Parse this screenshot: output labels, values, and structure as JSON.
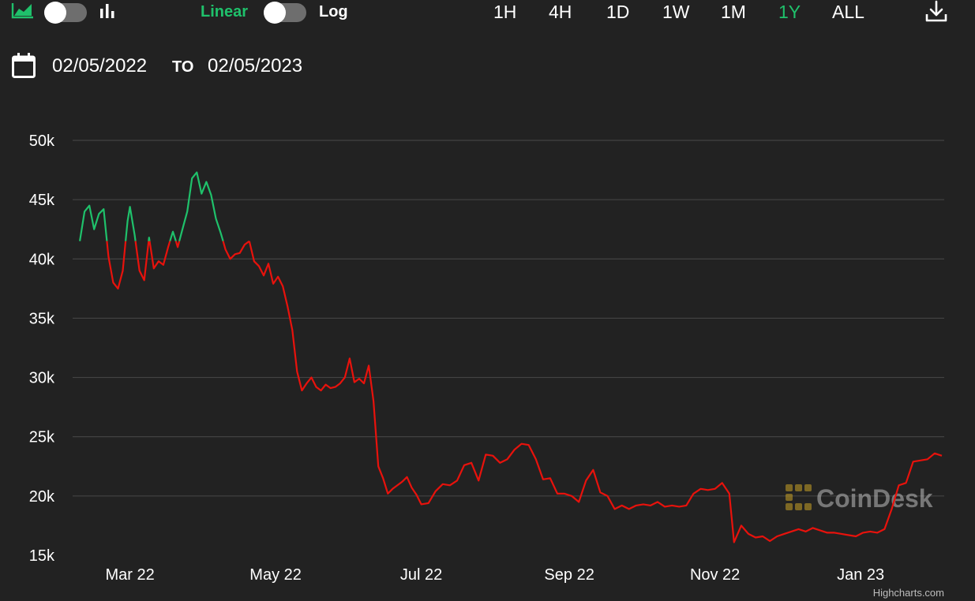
{
  "toolbar": {
    "icons": [
      "area-chart-icon",
      "bar-chart-icon",
      "download-icon"
    ],
    "scale_linear_label": "Linear",
    "scale_log_label": "Log",
    "selected_scale": "Linear",
    "ranges": [
      "1H",
      "4H",
      "1D",
      "1W",
      "1M",
      "1Y",
      "ALL"
    ],
    "selected_range": "1Y"
  },
  "date_range": {
    "from": "02/05/2022",
    "to_label": "TO",
    "to": "02/05/2023"
  },
  "colors": {
    "background": "#222222",
    "up": "#1fc16b",
    "down": "#e8120c",
    "grid": "#4a4a4a",
    "accent": "#1fc16b"
  },
  "watermark": "CoinDesk",
  "credit": "Highcharts.com",
  "chart_data": {
    "type": "line",
    "title": "",
    "xlabel": "",
    "ylabel": "",
    "ylim": [
      15000,
      50000
    ],
    "yticks": [
      15000,
      20000,
      25000,
      30000,
      35000,
      40000,
      45000,
      50000
    ],
    "ytick_labels": [
      "15k",
      "20k",
      "25k",
      "30k",
      "35k",
      "40k",
      "45k",
      "50k"
    ],
    "xlim": [
      "2022-02-05",
      "2023-02-05"
    ],
    "xticks": [
      "2022-03-01",
      "2022-05-01",
      "2022-07-01",
      "2022-09-01",
      "2022-11-01",
      "2023-01-01"
    ],
    "xtick_labels": [
      "Mar 22",
      "May 22",
      "Jul 22",
      "Sep 22",
      "Nov 22",
      "Jan 23"
    ],
    "grid": true,
    "color_rule": "green above 41500, red below",
    "threshold": 41500,
    "series": [
      {
        "name": "",
        "x": [
          "2022-02-08",
          "2022-02-10",
          "2022-02-12",
          "2022-02-14",
          "2022-02-16",
          "2022-02-18",
          "2022-02-20",
          "2022-02-22",
          "2022-02-24",
          "2022-02-26",
          "2022-02-28",
          "2022-03-01",
          "2022-03-03",
          "2022-03-05",
          "2022-03-07",
          "2022-03-09",
          "2022-03-11",
          "2022-03-13",
          "2022-03-15",
          "2022-03-17",
          "2022-03-19",
          "2022-03-21",
          "2022-03-23",
          "2022-03-25",
          "2022-03-27",
          "2022-03-29",
          "2022-03-31",
          "2022-04-02",
          "2022-04-04",
          "2022-04-06",
          "2022-04-08",
          "2022-04-10",
          "2022-04-12",
          "2022-04-14",
          "2022-04-16",
          "2022-04-18",
          "2022-04-20",
          "2022-04-22",
          "2022-04-24",
          "2022-04-26",
          "2022-04-28",
          "2022-04-30",
          "2022-05-02",
          "2022-05-04",
          "2022-05-06",
          "2022-05-08",
          "2022-05-10",
          "2022-05-12",
          "2022-05-14",
          "2022-05-16",
          "2022-05-18",
          "2022-05-20",
          "2022-05-22",
          "2022-05-24",
          "2022-05-26",
          "2022-05-28",
          "2022-05-30",
          "2022-06-01",
          "2022-06-03",
          "2022-06-05",
          "2022-06-07",
          "2022-06-09",
          "2022-06-11",
          "2022-06-13",
          "2022-06-15",
          "2022-06-17",
          "2022-06-19",
          "2022-06-21",
          "2022-06-23",
          "2022-06-25",
          "2022-06-27",
          "2022-06-29",
          "2022-07-01",
          "2022-07-04",
          "2022-07-07",
          "2022-07-10",
          "2022-07-13",
          "2022-07-16",
          "2022-07-19",
          "2022-07-22",
          "2022-07-25",
          "2022-07-28",
          "2022-07-31",
          "2022-08-03",
          "2022-08-06",
          "2022-08-09",
          "2022-08-12",
          "2022-08-15",
          "2022-08-18",
          "2022-08-21",
          "2022-08-24",
          "2022-08-27",
          "2022-08-30",
          "2022-09-02",
          "2022-09-05",
          "2022-09-08",
          "2022-09-11",
          "2022-09-14",
          "2022-09-17",
          "2022-09-20",
          "2022-09-23",
          "2022-09-26",
          "2022-09-29",
          "2022-10-02",
          "2022-10-05",
          "2022-10-08",
          "2022-10-11",
          "2022-10-14",
          "2022-10-17",
          "2022-10-20",
          "2022-10-23",
          "2022-10-26",
          "2022-10-29",
          "2022-11-01",
          "2022-11-04",
          "2022-11-07",
          "2022-11-09",
          "2022-11-12",
          "2022-11-15",
          "2022-11-18",
          "2022-11-21",
          "2022-11-24",
          "2022-11-27",
          "2022-11-30",
          "2022-12-03",
          "2022-12-06",
          "2022-12-09",
          "2022-12-12",
          "2022-12-15",
          "2022-12-18",
          "2022-12-21",
          "2022-12-24",
          "2022-12-27",
          "2022-12-30",
          "2023-01-02",
          "2023-01-05",
          "2023-01-08",
          "2023-01-11",
          "2023-01-14",
          "2023-01-17",
          "2023-01-20",
          "2023-01-23",
          "2023-01-26",
          "2023-01-29",
          "2023-02-01",
          "2023-02-04"
        ],
        "values": [
          41500,
          44000,
          44500,
          42500,
          43800,
          44200,
          40200,
          38000,
          37500,
          39000,
          43200,
          44400,
          42000,
          39000,
          38200,
          41800,
          39200,
          39800,
          39500,
          41000,
          42300,
          41000,
          42500,
          44000,
          46800,
          47300,
          45500,
          46500,
          45400,
          43400,
          42200,
          40800,
          40000,
          40400,
          40500,
          41200,
          41500,
          39800,
          39400,
          38600,
          39600,
          37900,
          38500,
          37700,
          36000,
          34000,
          30500,
          28900,
          29500,
          30000,
          29200,
          28900,
          29400,
          29100,
          29200,
          29500,
          30000,
          31600,
          29600,
          29900,
          29500,
          31000,
          28000,
          22500,
          21500,
          20200,
          20600,
          20900,
          21200,
          21600,
          20700,
          20100,
          19300,
          19400,
          20400,
          21000,
          20900,
          21300,
          22600,
          22800,
          21300,
          23500,
          23400,
          22800,
          23100,
          23900,
          24400,
          24300,
          23100,
          21400,
          21500,
          20200,
          20200,
          20000,
          19500,
          21300,
          22200,
          20300,
          20000,
          18900,
          19200,
          18900,
          19200,
          19300,
          19200,
          19500,
          19100,
          19200,
          19100,
          19200,
          20200,
          20600,
          20500,
          20600,
          21100,
          20200,
          16100,
          17500,
          16800,
          16500,
          16600,
          16200,
          16600,
          16800,
          17000,
          17200,
          17000,
          17300,
          17100,
          16900,
          16900,
          16800,
          16700,
          16600,
          16900,
          17000,
          16900,
          17200,
          18900,
          20900,
          21100,
          22900,
          23000,
          23100,
          23600,
          23400
        ]
      }
    ]
  }
}
